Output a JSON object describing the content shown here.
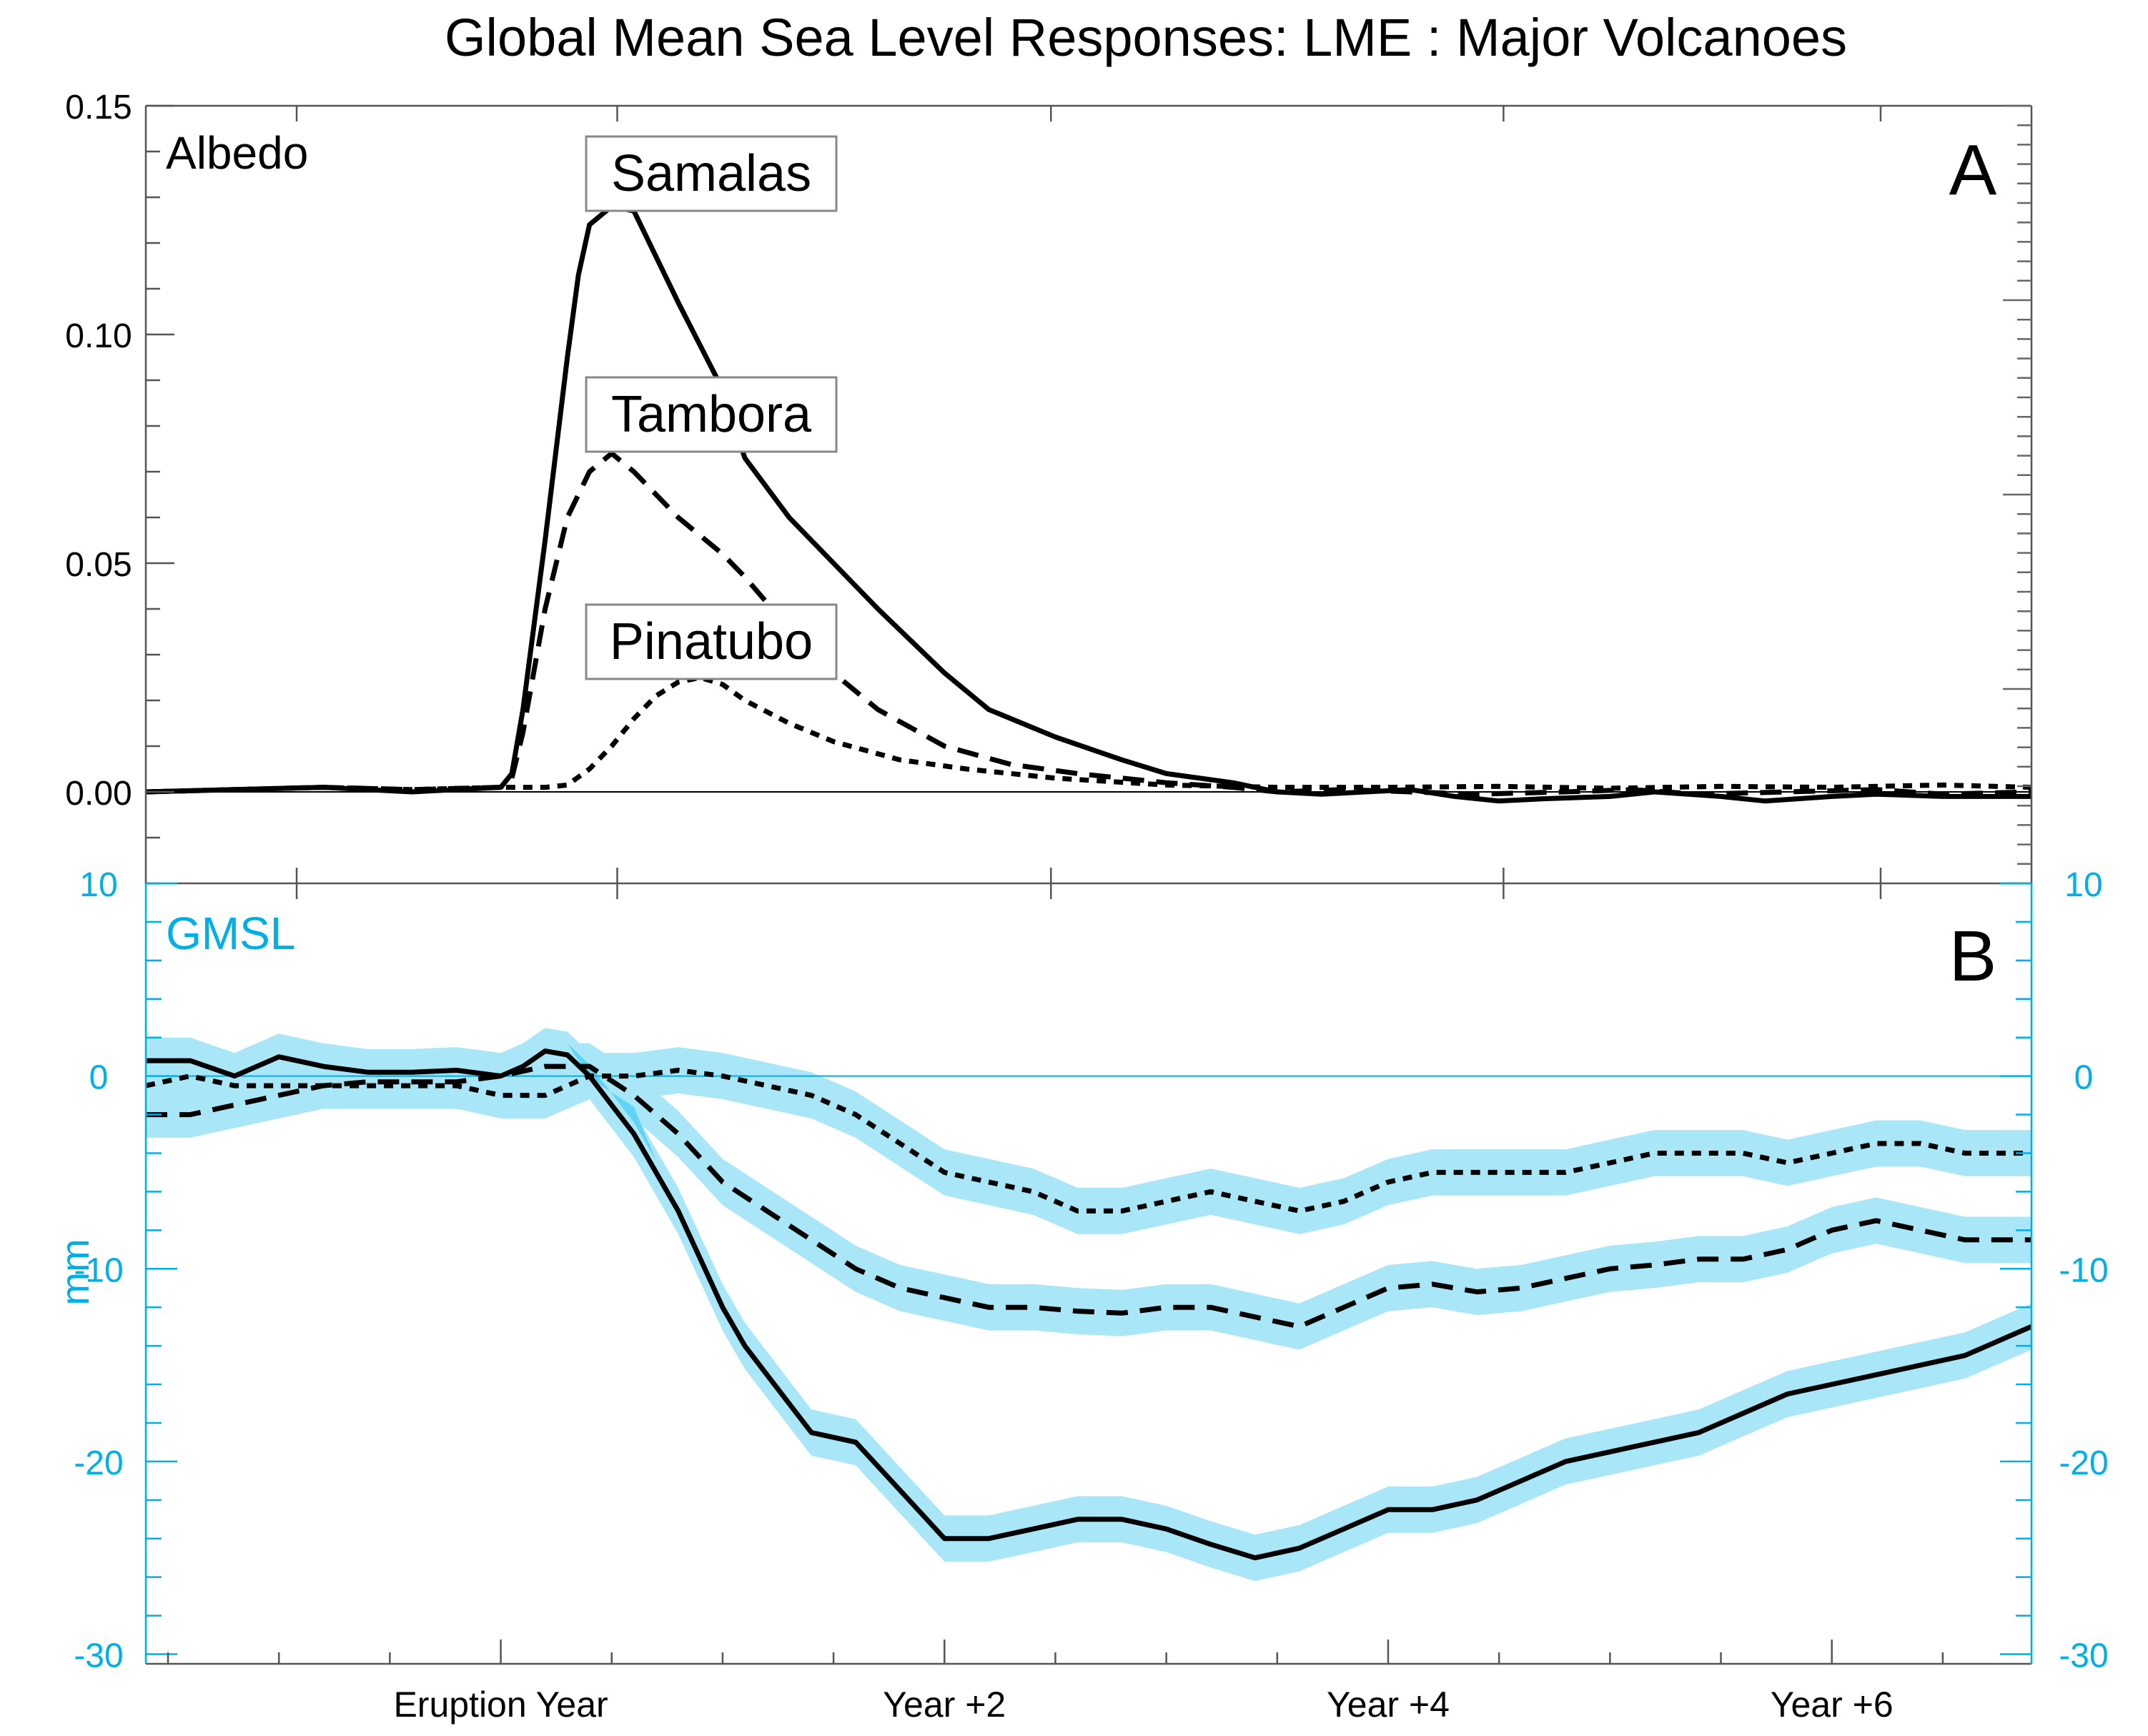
{
  "figure": {
    "title": "Global Mean Sea Level Responses: LME : Major Volcanoes",
    "x_tick_labels": [
      "Eruption Year",
      "Year +2",
      "Year +4",
      "Year +6"
    ],
    "x_ticks": [
      0,
      2,
      4,
      6
    ],
    "x_range": [
      -1.6,
      6.9
    ]
  },
  "colors": {
    "axis_a": "#000000",
    "axis_b": "#00aee8",
    "band_light": "#a8e6f8",
    "band_dark": "#22c4f0",
    "series": "#000000"
  },
  "chart_data": [
    {
      "id": "A",
      "type": "line",
      "panel_label": "A",
      "quantity_label": "Albedo",
      "ylabel": "",
      "ylim": [
        -0.02,
        0.15
      ],
      "y_ticks": [
        0.0,
        0.05,
        0.1,
        0.15
      ],
      "y_tick_labels": [
        "0.00",
        "0.05",
        "0.10",
        "0.15"
      ],
      "zero_line": true,
      "series": [
        {
          "name": "Samalas",
          "dash": "solid",
          "annotation": "Samalas",
          "x": [
            -1.6,
            -1.2,
            -0.8,
            -0.4,
            -0.2,
            0.0,
            0.05,
            0.1,
            0.2,
            0.3,
            0.35,
            0.4,
            0.5,
            0.6,
            0.8,
            1.0,
            1.1,
            1.3,
            1.5,
            1.7,
            2.0,
            2.2,
            2.5,
            2.8,
            3.0,
            3.3,
            3.5,
            3.7,
            3.9,
            4.1,
            4.3,
            4.5,
            4.7,
            5.0,
            5.2,
            5.5,
            5.7,
            6.0,
            6.2,
            6.5,
            6.9
          ],
          "y": [
            0.0,
            0.0005,
            0.001,
            0.0,
            0.0005,
            0.001,
            0.004,
            0.018,
            0.055,
            0.095,
            0.113,
            0.124,
            0.128,
            0.127,
            0.107,
            0.088,
            0.073,
            0.06,
            0.05,
            0.04,
            0.026,
            0.018,
            0.012,
            0.007,
            0.004,
            0.002,
            0.0,
            -0.0005,
            0.0,
            0.0005,
            -0.001,
            -0.002,
            -0.0015,
            -0.001,
            0.0,
            -0.001,
            -0.002,
            -0.001,
            -0.0005,
            -0.001,
            -0.001
          ]
        },
        {
          "name": "Tambora",
          "dash": "long",
          "annotation": "Tambora",
          "x": [
            -1.6,
            -1.2,
            -0.8,
            -0.4,
            0.0,
            0.05,
            0.1,
            0.2,
            0.3,
            0.4,
            0.5,
            0.6,
            0.8,
            1.0,
            1.1,
            1.4,
            1.7,
            2.0,
            2.3,
            2.6,
            3.0,
            3.3,
            3.5,
            3.8,
            4.1,
            4.4,
            4.8,
            5.1,
            5.4,
            5.8,
            6.2,
            6.5,
            6.9
          ],
          "y": [
            0.0,
            0.0005,
            0.001,
            0.0005,
            0.001,
            0.003,
            0.013,
            0.04,
            0.06,
            0.07,
            0.074,
            0.07,
            0.06,
            0.052,
            0.047,
            0.03,
            0.018,
            0.01,
            0.006,
            0.004,
            0.002,
            0.001,
            0.0,
            0.0005,
            0.0,
            -0.0005,
            0.0,
            0.0005,
            -0.0005,
            0.0,
            0.0005,
            -0.0005,
            0.0
          ]
        },
        {
          "name": "Pinatubo",
          "dash": "short",
          "annotation": "Pinatubo",
          "x": [
            -1.6,
            -1.2,
            -0.8,
            -0.4,
            0.0,
            0.2,
            0.3,
            0.4,
            0.5,
            0.6,
            0.7,
            0.8,
            0.9,
            1.0,
            1.1,
            1.3,
            1.5,
            1.8,
            2.1,
            2.5,
            3.0,
            3.5,
            4.0,
            4.5,
            5.0,
            5.5,
            6.0,
            6.5,
            6.9
          ],
          "y": [
            0.0,
            0.0005,
            0.001,
            0.0005,
            0.001,
            0.001,
            0.0015,
            0.005,
            0.01,
            0.016,
            0.021,
            0.024,
            0.025,
            0.0235,
            0.02,
            0.015,
            0.011,
            0.007,
            0.005,
            0.003,
            0.0015,
            0.001,
            0.001,
            0.0012,
            0.0008,
            0.0012,
            0.001,
            0.0015,
            0.001
          ]
        }
      ]
    },
    {
      "id": "B",
      "type": "line",
      "panel_label": "B",
      "quantity_label": "GMSL",
      "ylabel": "mm",
      "ylim": [
        -30.5,
        10
      ],
      "y_ticks": [
        -30,
        -20,
        -10,
        0,
        10
      ],
      "y_tick_labels": [
        "-30",
        "-20",
        "-10",
        "0",
        "10"
      ],
      "zero_line": true,
      "series": [
        {
          "name": "Samalas",
          "dash": "solid",
          "uncertainty_mm": 1.2,
          "x": [
            -1.6,
            -1.4,
            -1.2,
            -1.0,
            -0.8,
            -0.6,
            -0.4,
            -0.2,
            0.0,
            0.1,
            0.2,
            0.3,
            0.4,
            0.5,
            0.6,
            0.7,
            0.8,
            0.9,
            1.0,
            1.1,
            1.2,
            1.4,
            1.6,
            1.8,
            2.0,
            2.2,
            2.4,
            2.6,
            2.8,
            3.0,
            3.2,
            3.4,
            3.6,
            3.8,
            4.0,
            4.2,
            4.4,
            4.6,
            4.8,
            5.0,
            5.2,
            5.4,
            5.6,
            5.8,
            6.0,
            6.2,
            6.4,
            6.6,
            6.9
          ],
          "y": [
            0.8,
            0.8,
            0.0,
            1.0,
            0.5,
            0.2,
            0.2,
            0.3,
            0.0,
            0.5,
            1.3,
            1.1,
            0.0,
            -1.5,
            -3.0,
            -5.0,
            -7.0,
            -9.5,
            -12.0,
            -14.0,
            -15.5,
            -18.5,
            -19.0,
            -21.5,
            -24.0,
            -24.0,
            -23.5,
            -23.0,
            -23.0,
            -23.5,
            -24.3,
            -25.0,
            -24.5,
            -23.5,
            -22.5,
            -22.5,
            -22.0,
            -21.0,
            -20.0,
            -19.5,
            -19.0,
            -18.5,
            -17.5,
            -16.5,
            -16.0,
            -15.5,
            -15.0,
            -14.5,
            -13.0
          ]
        },
        {
          "name": "Tambora",
          "dash": "long",
          "uncertainty_mm": 1.2,
          "x": [
            -1.6,
            -1.4,
            -1.2,
            -1.0,
            -0.8,
            -0.6,
            -0.4,
            -0.2,
            0.0,
            0.2,
            0.4,
            0.6,
            0.8,
            1.0,
            1.2,
            1.4,
            1.6,
            1.8,
            2.0,
            2.2,
            2.4,
            2.6,
            2.8,
            3.0,
            3.2,
            3.4,
            3.6,
            3.8,
            4.0,
            4.2,
            4.4,
            4.6,
            4.8,
            5.0,
            5.2,
            5.4,
            5.6,
            5.8,
            6.0,
            6.2,
            6.4,
            6.6,
            6.9
          ],
          "y": [
            -2.0,
            -2.0,
            -1.5,
            -1.0,
            -0.5,
            -0.3,
            -0.3,
            -0.3,
            0.0,
            0.5,
            0.5,
            -1.0,
            -3.0,
            -5.5,
            -7.0,
            -8.5,
            -10.0,
            -11.0,
            -11.5,
            -12.0,
            -12.0,
            -12.2,
            -12.3,
            -12.0,
            -12.0,
            -12.5,
            -13.0,
            -12.0,
            -11.0,
            -10.8,
            -11.2,
            -11.0,
            -10.5,
            -10.0,
            -9.8,
            -9.5,
            -9.5,
            -9.0,
            -8.0,
            -7.5,
            -8.0,
            -8.5,
            -8.5
          ]
        },
        {
          "name": "Pinatubo",
          "dash": "short",
          "uncertainty_mm": 1.2,
          "x": [
            -1.6,
            -1.4,
            -1.2,
            -1.0,
            -0.8,
            -0.6,
            -0.4,
            -0.2,
            0.0,
            0.2,
            0.4,
            0.6,
            0.8,
            1.0,
            1.2,
            1.4,
            1.6,
            1.8,
            2.0,
            2.2,
            2.4,
            2.6,
            2.8,
            3.0,
            3.2,
            3.4,
            3.6,
            3.8,
            4.0,
            4.2,
            4.4,
            4.6,
            4.8,
            5.0,
            5.2,
            5.4,
            5.6,
            5.8,
            6.0,
            6.2,
            6.4,
            6.6,
            6.9
          ],
          "y": [
            -0.5,
            0.0,
            -0.5,
            -0.5,
            -0.5,
            -0.5,
            -0.5,
            -0.5,
            -1.0,
            -1.0,
            0.0,
            0.0,
            0.3,
            0.0,
            -0.5,
            -1.0,
            -2.0,
            -3.5,
            -5.0,
            -5.5,
            -6.0,
            -7.0,
            -7.0,
            -6.5,
            -6.0,
            -6.5,
            -7.0,
            -6.5,
            -5.5,
            -5.0,
            -5.0,
            -5.0,
            -5.0,
            -4.5,
            -4.0,
            -4.0,
            -4.0,
            -4.5,
            -4.0,
            -3.5,
            -3.5,
            -4.0,
            -4.0
          ]
        }
      ]
    }
  ]
}
